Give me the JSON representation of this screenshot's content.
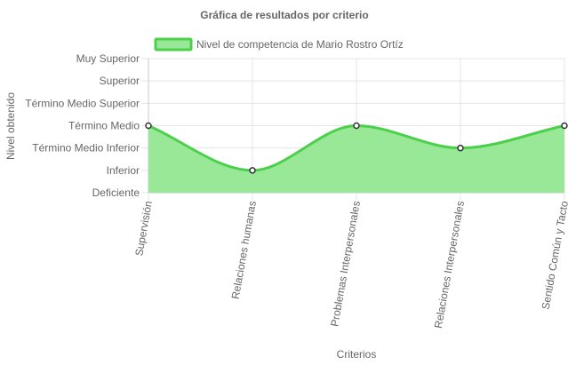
{
  "chart_data": {
    "type": "area",
    "title": "Gráfica de resultados por criterio",
    "xlabel": "Criterios",
    "ylabel": "Nivel obtenido",
    "categories": [
      "Supervisión",
      "Relaciones humanas",
      "Problemas Interpersonales",
      "Relaciones Interpersonales",
      "Sentido Común y Tacto"
    ],
    "y_levels": [
      "Deficiente",
      "Inferior",
      "Término Medio Inferior",
      "Término Medio",
      "Término Medio Superior",
      "Superior",
      "Muy Superior"
    ],
    "series": [
      {
        "name": "Nivel de competencia de Mario Rostro Ortíz",
        "values": [
          3,
          1,
          3,
          2,
          3
        ],
        "value_labels": [
          "Término Medio",
          "Inferior",
          "Término Medio",
          "Término Medio Inferior",
          "Término Medio"
        ]
      }
    ],
    "ylim": [
      0,
      6
    ],
    "grid": true,
    "legend_position": "top",
    "colors": {
      "line": "#4cd04c",
      "fill": "#98e898",
      "point_fill": "#ffffff",
      "point_stroke": "#333333",
      "grid": "#e5e5e5",
      "axis": "#666666",
      "text": "#666666"
    }
  }
}
